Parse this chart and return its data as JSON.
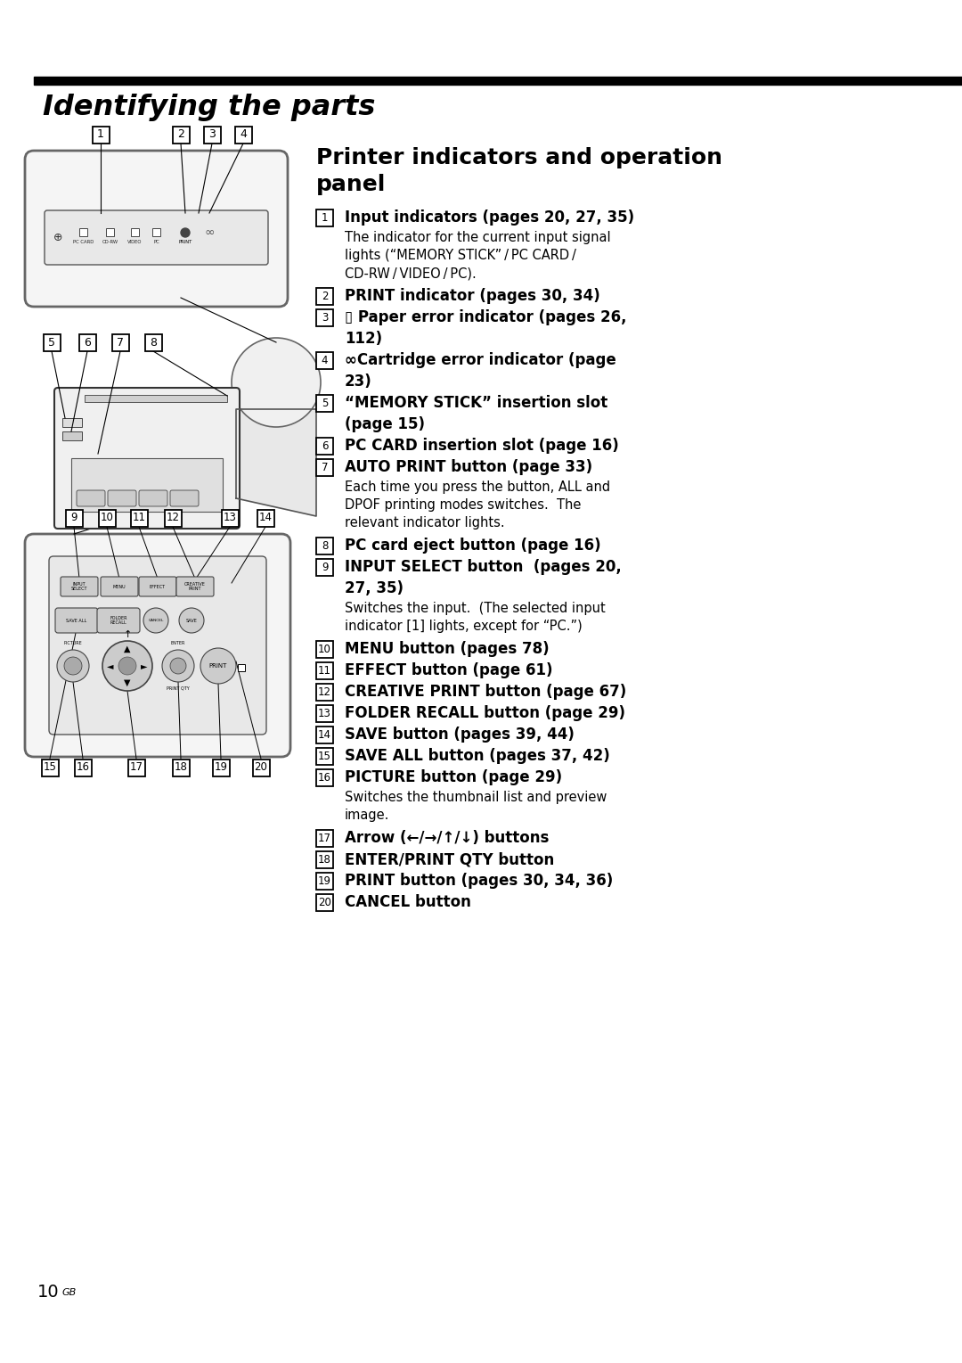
{
  "page_bg": "#ffffff",
  "header_bar_color": "#000000",
  "header_text": "Identifying the parts",
  "header_text_color": "#000000",
  "section_title_line1": "Printer indicators and operation",
  "section_title_line2": "panel",
  "page_number": "10",
  "page_number_sup": "GB",
  "items": [
    {
      "num": "1",
      "bold_text": "Input indicators (pages 20, 27, 35)",
      "normal_text": "The indicator for the current input signal\nlights (“MEMORY STICK” / PC CARD /\nCD-RW / VIDEO / PC)."
    },
    {
      "num": "2",
      "bold_text": "PRINT indicator (pages 30, 34)",
      "normal_text": ""
    },
    {
      "num": "3",
      "bold_text": "▯ Paper error indicator (pages 26,\n112)",
      "normal_text": ""
    },
    {
      "num": "4",
      "bold_text": "∞Cartridge error indicator (page\n23)",
      "normal_text": ""
    },
    {
      "num": "5",
      "bold_text": "“MEMORY STICK” insertion slot\n(page 15)",
      "normal_text": ""
    },
    {
      "num": "6",
      "bold_text": "PC CARD insertion slot (page 16)",
      "normal_text": ""
    },
    {
      "num": "7",
      "bold_text": "AUTO PRINT button (page 33)",
      "normal_text": "Each time you press the button, ALL and\nDPOF printing modes switches.  The\nrelevant indicator lights."
    },
    {
      "num": "8",
      "bold_text": "PC card eject button (page 16)",
      "normal_text": ""
    },
    {
      "num": "9",
      "bold_text": "INPUT SELECT button  (pages 20,\n27, 35)",
      "normal_text": "Switches the input.  (The selected input\nindicator [1] lights, except for “PC.”)"
    },
    {
      "num": "10",
      "bold_text": "MENU button (pages 78)",
      "normal_text": ""
    },
    {
      "num": "11",
      "bold_text": "EFFECT button (page 61)",
      "normal_text": ""
    },
    {
      "num": "12",
      "bold_text": "CREATIVE PRINT button (page 67)",
      "normal_text": ""
    },
    {
      "num": "13",
      "bold_text": "FOLDER RECALL button (page 29)",
      "normal_text": ""
    },
    {
      "num": "14",
      "bold_text": "SAVE button (pages 39, 44)",
      "normal_text": ""
    },
    {
      "num": "15",
      "bold_text": "SAVE ALL button (pages 37, 42)",
      "normal_text": ""
    },
    {
      "num": "16",
      "bold_text": "PICTURE button (page 29)",
      "normal_text": "Switches the thumbnail list and preview\nimage."
    },
    {
      "num": "17",
      "bold_text": "Arrow (←/→/↑/↓) buttons",
      "normal_text": ""
    },
    {
      "num": "18",
      "bold_text": "ENTER/PRINT QTY button",
      "normal_text": ""
    },
    {
      "num": "19",
      "bold_text": "PRINT button (pages 30, 34, 36)",
      "normal_text": ""
    },
    {
      "num": "20",
      "bold_text": "CANCEL button",
      "normal_text": ""
    }
  ]
}
